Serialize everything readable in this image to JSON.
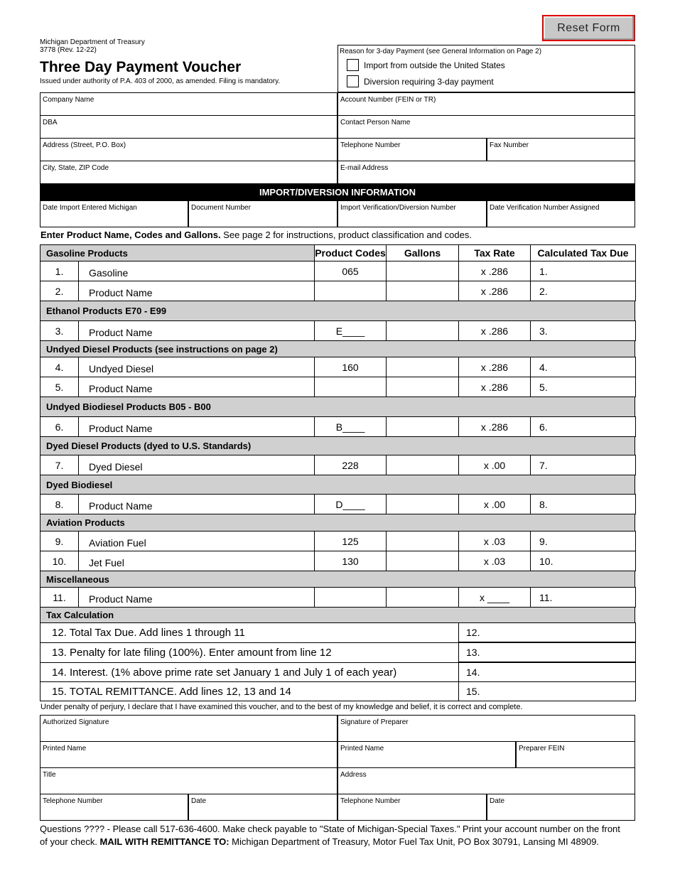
{
  "header": {
    "agency": "Michigan Department of Treasury",
    "form_number": "3778 (Rev. 12-22)",
    "title": "Three Day Payment Voucher",
    "authority": "Issued under authority of P.A. 403 of 2000, as amended. Filing is mandatory.",
    "reset_label": "Reset Form"
  },
  "reason": {
    "label": "Reason for 3-day Payment (see General Information on Page 2)",
    "options": [
      "Import from outside the United States",
      "Diversion requiring 3-day payment"
    ]
  },
  "company": {
    "company_name": "Company Name",
    "account_number": "Account Number (FEIN or TR)",
    "dba": "DBA",
    "contact": "Contact Person Name",
    "address": "Address (Street, P.O. Box)",
    "telephone": "Telephone Number",
    "fax": "Fax Number",
    "city": "City, State, ZIP Code",
    "email": "E-mail Address"
  },
  "import": {
    "heading": "IMPORT/DIVERSION INFORMATION",
    "date_import": "Date Import Entered Michigan",
    "document_number": "Document Number",
    "verification_number": "Import Verification/Diversion Number",
    "date_verification": "Date Verification Number Assigned"
  },
  "instructions": {
    "bold": "Enter Product Name, Codes and Gallons.",
    "rest": " See page 2 for instructions, product classification and codes."
  },
  "products": {
    "columns": [
      "Gasoline Products",
      "Product Codes",
      "Gallons",
      "Tax Rate",
      "Calculated Tax Due"
    ],
    "sections": [
      {
        "title": null,
        "rows": [
          {
            "num": "1.",
            "name": "Gasoline",
            "code": "065",
            "rate": "x .286",
            "due": "1."
          },
          {
            "num": "2.",
            "name": "Product Name",
            "code": "",
            "rate": "x .286",
            "due": "2."
          }
        ]
      },
      {
        "title": "Ethanol Products E70 - E99",
        "rows": [
          {
            "num": "3.",
            "name": "Product Name",
            "code": "E____",
            "rate": "x .286",
            "due": "3."
          }
        ]
      },
      {
        "title": "Undyed Diesel Products (see instructions on page 2)",
        "rows": [
          {
            "num": "4.",
            "name": "Undyed Diesel",
            "code": "160",
            "rate": "x .286",
            "due": "4."
          },
          {
            "num": "5.",
            "name": "Product Name",
            "code": "",
            "rate": "x .286",
            "due": "5."
          }
        ]
      },
      {
        "title": "Undyed Biodiesel Products B05 - B00",
        "rows": [
          {
            "num": "6.",
            "name": "Product Name",
            "code": "B____",
            "rate": "x .286",
            "due": "6."
          }
        ]
      },
      {
        "title": "Dyed Diesel Products (dyed to U.S. Standards)",
        "rows": [
          {
            "num": "7.",
            "name": "Dyed Diesel",
            "code": "228",
            "rate": "x .00",
            "due": "7."
          }
        ]
      },
      {
        "title": "Dyed Biodiesel",
        "rows": [
          {
            "num": "8.",
            "name": "Product Name",
            "code": "D____",
            "rate": "x .00",
            "due": "8."
          }
        ]
      },
      {
        "title": "Aviation Products",
        "rows": [
          {
            "num": "9.",
            "name": "Aviation Fuel",
            "code": "125",
            "rate": "x .03",
            "due": "9."
          },
          {
            "num": "10.",
            "name": "Jet Fuel",
            "code": "130",
            "rate": "x .03",
            "due": "10."
          }
        ]
      },
      {
        "title": "Miscellaneous",
        "rows": [
          {
            "num": "11.",
            "name": "Product Name",
            "code": "",
            "rate": "x ____",
            "due": "11."
          }
        ]
      }
    ]
  },
  "tax": {
    "title": "Tax Calculation",
    "rows": [
      {
        "label": "12. Total Tax Due. Add lines 1 through 11",
        "num": "12."
      },
      {
        "label": "13. Penalty for late filing (100%). Enter amount from line 12",
        "num": "13."
      },
      {
        "label": "14. Interest. (1% above prime rate set January 1 and July 1 of each year)",
        "num": "14."
      },
      {
        "label": "15. TOTAL REMITTANCE. Add lines 12, 13 and 14",
        "num": "15."
      }
    ]
  },
  "declaration": "Under penalty of perjury, I declare that I have examined this voucher, and to the best of my knowledge and belief, it is correct and complete.",
  "signature": {
    "authorized": "Authorized Signature",
    "preparer_sig": "Signature of Preparer",
    "printed1": "Printed Name",
    "printed2": "Printed Name",
    "preparer_fein": "Preparer FEIN",
    "title": "Title",
    "address": "Address",
    "tel1": "Telephone Number",
    "date1": "Date",
    "tel2": "Telephone Number",
    "date2": "Date"
  },
  "footer": {
    "text1": "Questions ???? - Please call 517-636-4600. Make check payable to \"State of Michigan-Special Taxes.\" Print your account number on the front of your check. ",
    "bold": "MAIL WITH REMITTANCE TO:",
    "text2": " Michigan Department of Treasury, Motor Fuel Tax Unit, PO Box 30791, Lansing MI 48909."
  }
}
